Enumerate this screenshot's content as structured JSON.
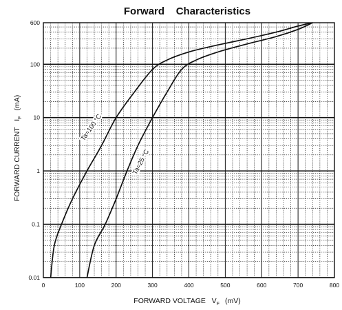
{
  "chart_data": {
    "type": "line",
    "title": "Forward    Characteristics",
    "xlabel": {
      "main": "FORWARD VOLTAGE   V",
      "subscript": "F",
      "unit": "(mV)"
    },
    "ylabel": {
      "main": "FORWARD CURRENT   I",
      "subscript": "F",
      "unit": "(mA)"
    },
    "xlim": [
      0,
      800
    ],
    "ylim": [
      0.01,
      600
    ],
    "y_scale": "log",
    "grid": true,
    "x_ticks": [
      "0",
      "100",
      "200",
      "300",
      "400",
      "500",
      "600",
      "700",
      "800"
    ],
    "y_ticks": [
      {
        "value": 0.01,
        "label": "0.01"
      },
      {
        "value": 0.1,
        "label": "0.1"
      },
      {
        "value": 1,
        "label": "1"
      },
      {
        "value": 10,
        "label": "10"
      },
      {
        "value": 100,
        "label": "100"
      },
      {
        "value": 600,
        "label": "600"
      }
    ],
    "series": [
      {
        "name": "Ta=100 °C",
        "x": [
          20,
          30,
          50,
          80,
          120,
          160,
          200,
          250,
          300,
          340,
          400,
          480,
          560,
          640,
          700,
          740
        ],
        "y": [
          0.01,
          0.04,
          0.1,
          0.3,
          1,
          3,
          10,
          30,
          80,
          120,
          170,
          230,
          300,
          400,
          520,
          600
        ]
      },
      {
        "name": "Ta=25 °C",
        "x": [
          120,
          140,
          170,
          200,
          230,
          260,
          300,
          340,
          380,
          420,
          480,
          560,
          640,
          700,
          740
        ],
        "y": [
          0.01,
          0.04,
          0.1,
          0.3,
          1,
          3,
          10,
          30,
          80,
          120,
          170,
          240,
          330,
          450,
          600
        ]
      }
    ]
  }
}
